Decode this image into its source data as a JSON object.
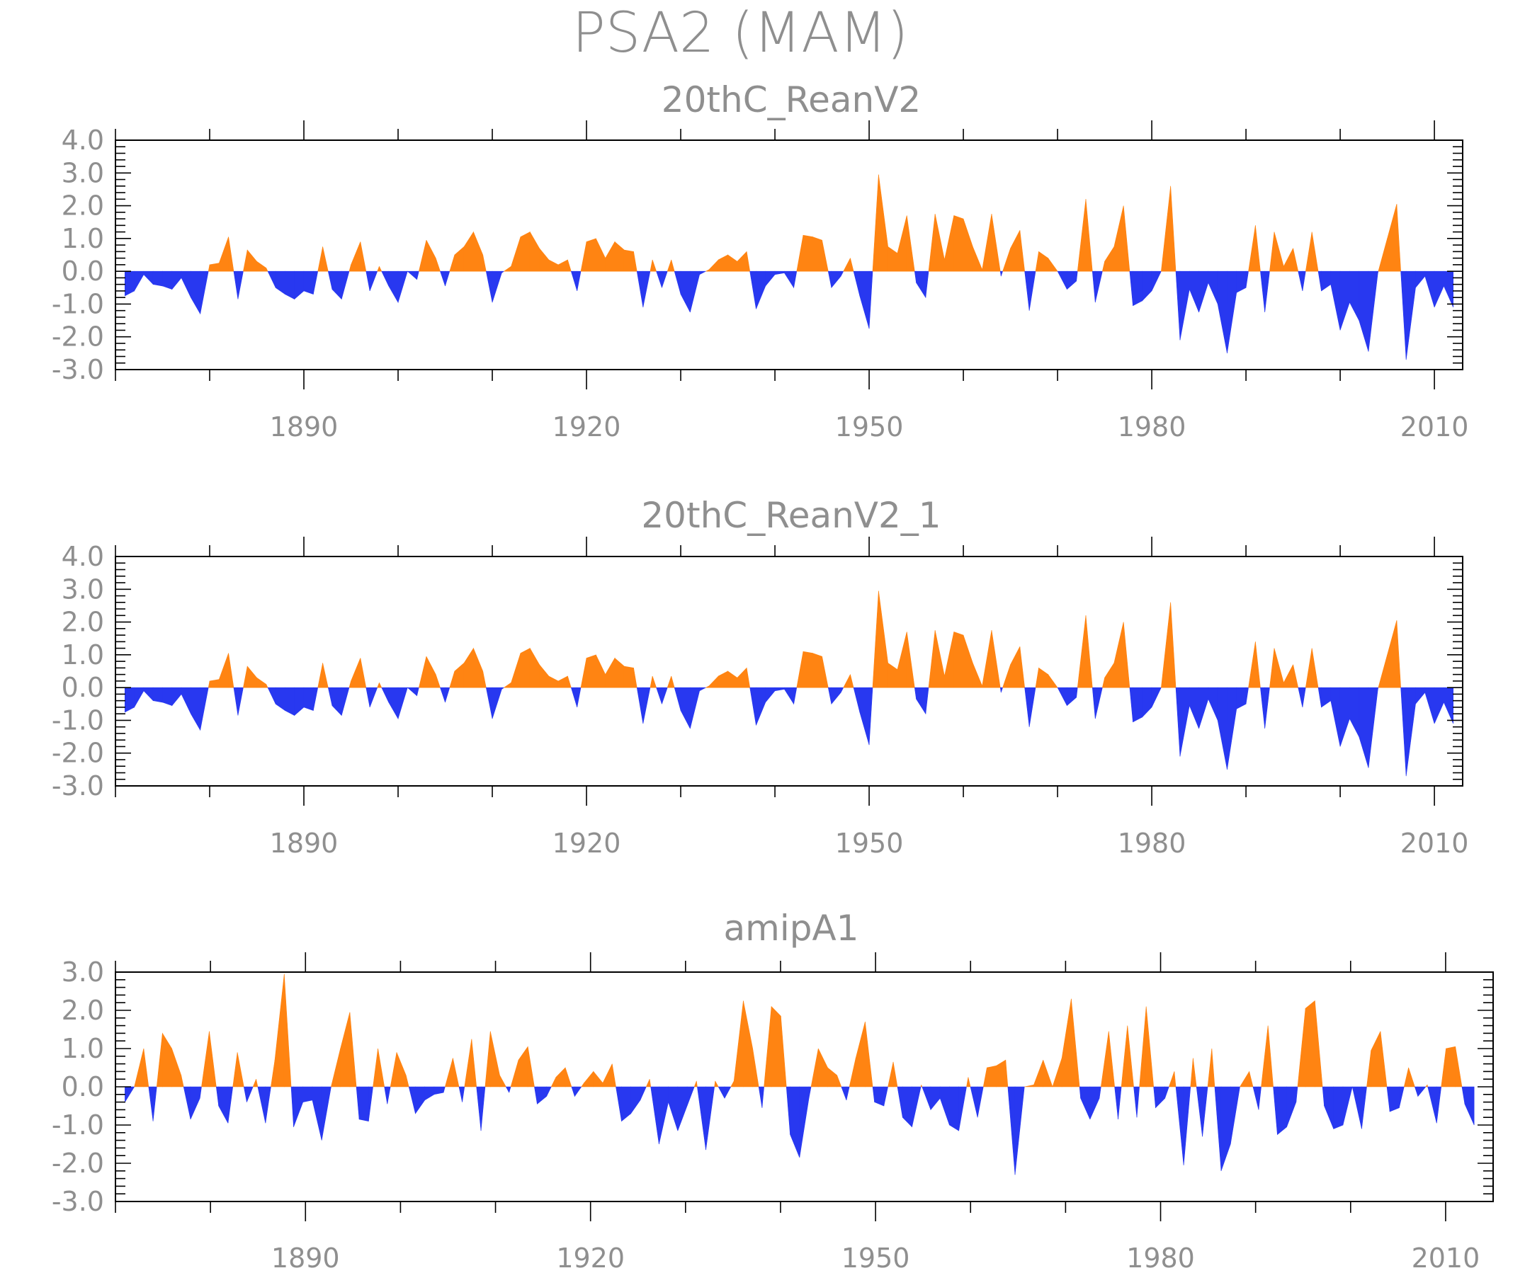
{
  "title": "PSA2 (MAM)",
  "colors": {
    "positive": "#ff8412",
    "negative": "#2838f0",
    "text": "#8f8f8f",
    "axis": "#000000"
  },
  "chart_data": [
    {
      "type": "area",
      "title": "20thC_ReanV2",
      "x_start": 1871,
      "x_end": 2012,
      "xlim": [
        1870,
        2013
      ],
      "xticks": [
        1890,
        1920,
        1950,
        1980,
        2010
      ],
      "xtick_labels": [
        "1890",
        "1920",
        "1950",
        "1980",
        "2010"
      ],
      "ylim": [
        -3,
        4
      ],
      "yticks": [
        -3,
        -2,
        -1,
        0,
        1,
        2,
        3,
        4
      ],
      "ytick_labels": [
        "-3.0",
        "-2.0",
        "-1.0",
        "0.0",
        "1.0",
        "2.0",
        "3.0",
        "4.0"
      ],
      "values": [
        -0.75,
        -0.6,
        -0.1,
        -0.4,
        -0.45,
        -0.55,
        -0.2,
        -0.8,
        -1.3,
        0.2,
        0.25,
        1.05,
        -0.85,
        0.65,
        0.3,
        0.1,
        -0.5,
        -0.7,
        -0.85,
        -0.6,
        -0.7,
        0.75,
        -0.55,
        -0.85,
        0.2,
        0.9,
        -0.6,
        0.15,
        -0.45,
        -0.95,
        0.0,
        -0.25,
        0.95,
        0.4,
        -0.45,
        0.5,
        0.75,
        1.2,
        0.5,
        -0.95,
        -0.05,
        0.15,
        1.05,
        1.2,
        0.7,
        0.35,
        0.2,
        0.35,
        -0.6,
        0.9,
        1.0,
        0.4,
        0.9,
        0.65,
        0.6,
        -1.1,
        0.35,
        -0.5,
        0.35,
        -0.7,
        -1.25,
        -0.1,
        0.05,
        0.35,
        0.5,
        0.3,
        0.6,
        -1.15,
        -0.45,
        -0.1,
        -0.05,
        -0.5,
        1.1,
        1.05,
        0.95,
        -0.5,
        -0.15,
        0.4,
        -0.75,
        -1.75,
        2.95,
        0.75,
        0.55,
        1.7,
        -0.35,
        -0.8,
        1.75,
        0.35,
        1.7,
        1.6,
        0.75,
        0.05,
        1.75,
        -0.15,
        0.7,
        1.25,
        -1.2,
        0.6,
        0.4,
        0.0,
        -0.55,
        -0.3,
        2.2,
        -0.95,
        0.3,
        0.75,
        2.0,
        -1.05,
        -0.9,
        -0.6,
        0.0,
        2.6,
        -2.1,
        -0.55,
        -1.25,
        -0.35,
        -1.0,
        -2.5,
        -0.65,
        -0.5,
        1.4,
        -1.25,
        1.2,
        0.15,
        0.7,
        -0.6,
        1.2,
        -0.6,
        -0.4,
        -1.8,
        -0.95,
        -1.5,
        -2.45,
        -0.05,
        1.0,
        2.05,
        -2.7,
        -0.5,
        -0.15,
        -1.1,
        -0.45,
        -1.1
      ]
    },
    {
      "type": "area",
      "title": "20thC_ReanV2_1",
      "x_start": 1871,
      "x_end": 2012,
      "xlim": [
        1870,
        2013
      ],
      "xticks": [
        1890,
        1920,
        1950,
        1980,
        2010
      ],
      "xtick_labels": [
        "1890",
        "1920",
        "1950",
        "1980",
        "2010"
      ],
      "ylim": [
        -3,
        4
      ],
      "yticks": [
        -3,
        -2,
        -1,
        0,
        1,
        2,
        3,
        4
      ],
      "ytick_labels": [
        "-3.0",
        "-2.0",
        "-1.0",
        "0.0",
        "1.0",
        "2.0",
        "3.0",
        "4.0"
      ],
      "values": [
        -0.75,
        -0.6,
        -0.1,
        -0.4,
        -0.45,
        -0.55,
        -0.2,
        -0.8,
        -1.3,
        0.2,
        0.25,
        1.05,
        -0.85,
        0.65,
        0.3,
        0.1,
        -0.5,
        -0.7,
        -0.85,
        -0.6,
        -0.7,
        0.75,
        -0.55,
        -0.85,
        0.2,
        0.9,
        -0.6,
        0.15,
        -0.45,
        -0.95,
        0.0,
        -0.25,
        0.95,
        0.4,
        -0.45,
        0.5,
        0.75,
        1.2,
        0.5,
        -0.95,
        -0.05,
        0.15,
        1.05,
        1.2,
        0.7,
        0.35,
        0.2,
        0.35,
        -0.6,
        0.9,
        1.0,
        0.4,
        0.9,
        0.65,
        0.6,
        -1.1,
        0.35,
        -0.5,
        0.35,
        -0.7,
        -1.25,
        -0.1,
        0.05,
        0.35,
        0.5,
        0.3,
        0.6,
        -1.15,
        -0.45,
        -0.1,
        -0.05,
        -0.5,
        1.1,
        1.05,
        0.95,
        -0.5,
        -0.15,
        0.4,
        -0.75,
        -1.75,
        2.95,
        0.75,
        0.55,
        1.7,
        -0.35,
        -0.8,
        1.75,
        0.35,
        1.7,
        1.6,
        0.75,
        0.05,
        1.75,
        -0.15,
        0.7,
        1.25,
        -1.2,
        0.6,
        0.4,
        0.0,
        -0.55,
        -0.3,
        2.2,
        -0.95,
        0.3,
        0.75,
        2.0,
        -1.05,
        -0.9,
        -0.6,
        0.0,
        2.6,
        -2.1,
        -0.55,
        -1.25,
        -0.35,
        -1.0,
        -2.5,
        -0.65,
        -0.5,
        1.4,
        -1.25,
        1.2,
        0.15,
        0.7,
        -0.6,
        1.2,
        -0.6,
        -0.4,
        -1.8,
        -0.95,
        -1.5,
        -2.45,
        -0.05,
        1.0,
        2.05,
        -2.7,
        -0.5,
        -0.15,
        -1.1,
        -0.45,
        -1.1
      ]
    },
    {
      "type": "area",
      "title": "amipA1",
      "x_start": 1871,
      "x_end": 2013,
      "xlim": [
        1870,
        2015
      ],
      "xticks": [
        1890,
        1920,
        1950,
        1980,
        2010
      ],
      "xtick_labels": [
        "1890",
        "1920",
        "1950",
        "1980",
        "2010"
      ],
      "ylim": [
        -3,
        3
      ],
      "yticks": [
        -3,
        -2,
        -1,
        0,
        1,
        2,
        3
      ],
      "ytick_labels": [
        "-3.0",
        "-2.0",
        "-1.0",
        "0.0",
        "1.0",
        "2.0",
        "3.0"
      ],
      "values": [
        -0.4,
        0.0,
        1.0,
        -0.9,
        1.4,
        1.0,
        0.3,
        -0.85,
        -0.3,
        1.45,
        -0.5,
        -0.95,
        0.9,
        -0.4,
        0.2,
        -0.95,
        0.7,
        2.95,
        -1.05,
        -0.4,
        -0.35,
        -1.4,
        0.0,
        1.0,
        1.95,
        -0.85,
        -0.9,
        1.0,
        -0.45,
        0.9,
        0.3,
        -0.7,
        -0.35,
        -0.2,
        -0.15,
        0.75,
        -0.4,
        1.25,
        -1.15,
        1.45,
        0.3,
        -0.15,
        0.7,
        1.05,
        -0.45,
        -0.25,
        0.25,
        0.5,
        -0.25,
        0.1,
        0.4,
        0.1,
        0.6,
        -0.9,
        -0.7,
        -0.35,
        0.2,
        -1.5,
        -0.4,
        -1.15,
        -0.5,
        0.15,
        -1.65,
        0.15,
        -0.3,
        0.15,
        2.25,
        1.0,
        -0.55,
        2.1,
        1.85,
        -1.25,
        -1.85,
        -0.3,
        1.0,
        0.5,
        0.3,
        -0.35,
        0.75,
        1.7,
        -0.4,
        -0.5,
        0.65,
        -0.8,
        -1.05,
        0.05,
        -0.6,
        -0.3,
        -1.0,
        -1.15,
        0.25,
        -0.8,
        0.5,
        0.55,
        0.7,
        -2.3,
        0.0,
        0.05,
        0.7,
        0.0,
        0.75,
        2.3,
        -0.3,
        -0.85,
        -0.3,
        1.45,
        -0.85,
        1.6,
        -0.8,
        2.1,
        -0.55,
        -0.3,
        0.4,
        -2.05,
        0.75,
        -1.3,
        1.0,
        -2.2,
        -1.5,
        0.0,
        0.4,
        -0.6,
        1.6,
        -1.25,
        -1.05,
        -0.4,
        2.05,
        2.25,
        -0.5,
        -1.1,
        -1.0,
        0.0,
        -1.1,
        0.95,
        1.45,
        -0.65,
        -0.55,
        0.5,
        -0.25,
        0.05,
        -0.95,
        1.0,
        1.05,
        -0.45,
        -1.0
      ]
    }
  ]
}
